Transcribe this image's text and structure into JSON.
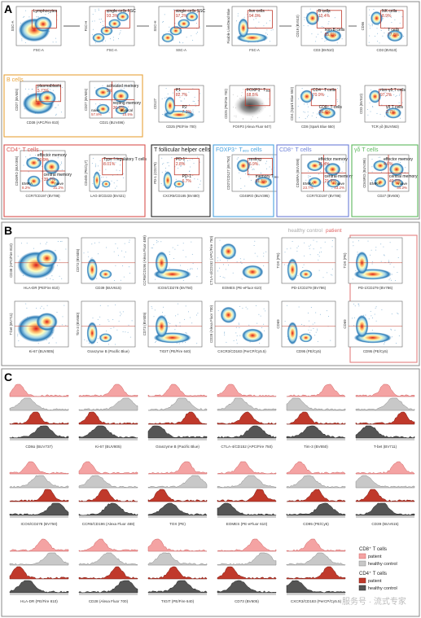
{
  "panels": {
    "A": {
      "letter": "A",
      "plots": [
        {
          "gate": "Lymphocytes",
          "pct": "",
          "ylab": "SSC-A",
          "xlab": "FSC-A",
          "tone": "blob"
        },
        {
          "gate": "single cells FSC",
          "pct": "93.3%",
          "ylab": "FSC-H",
          "xlab": "FSC-A",
          "tone": "diag"
        },
        {
          "gate": "single cells SSC",
          "pct": "97.2%",
          "ylab": "SSC-H",
          "xlab": "SSC-A",
          "tone": "diag"
        },
        {
          "gate": "live cells",
          "pct": "94.0%",
          "ylab": "Fixable Live/Dead Blue",
          "xlab": "FSC-A",
          "tone": "bottom"
        },
        {
          "gate": "B cells",
          "pct": "10.4%",
          "gate2": "non-B cells",
          "pct2": "85.6%",
          "ylab": "CD19 (BV510)",
          "xlab": "CD3 (BV510)",
          "tone": "two"
        },
        {
          "gate": "NK cells",
          "pct": "8.9%",
          "gate2": "T cells",
          "pct2": "77.8%",
          "ylab": "CD56",
          "xlab": "CD3 (BV510)",
          "tone": "two"
        },
        {
          "gate": "plasmablasts",
          "pct": "5.73%",
          "ylab": "CD27 (BV605)",
          "xlab": "CD38 (APC/Fire 810)",
          "tone": "blob"
        },
        {
          "gate": "activated memory",
          "pct": "5%",
          "gate2": "resting memory",
          "pct2": "26.6%",
          "gate3": "naive",
          "pct3": "57.8%",
          "gate4": "atypical",
          "pct4": "10.5%",
          "ylab": "CD27 (BV605)",
          "xlab": "CD21 (BUV496)",
          "tone": "quad"
        },
        {
          "gate": "P1",
          "pct": "82.7%",
          "gate2": "P2",
          "pct2": "7.1%",
          "ylab": "CD127",
          "xlab": "CD25 (PE/Fire 700)",
          "tone": "bottom"
        },
        {
          "gate": "FOXP3⁺ Tₔₑ₉",
          "pct": "68.5%",
          "ylab": "CD25 (PE/Fire 700)",
          "xlab": "FOXP3 (Alexa Fluor 647)",
          "tone": "gray"
        },
        {
          "gate": "CD4⁺ T cells",
          "pct": "70.9%",
          "gate2": "CD8⁺ T cells",
          "pct2": "26.4%",
          "ylab": "CD4 (Spark Blue 550)",
          "xlab": "CD8 (Spark Blue 550)",
          "tone": "two"
        },
        {
          "gate": "non-γδ T cells",
          "pct": "97.2%",
          "gate2": "γδ T cells",
          "pct2": "2.7%",
          "ylab": "CD3 (BV510)",
          "xlab": "TCR γδ (BUV563)",
          "tone": "two"
        },
        {
          "gate": "effector memory",
          "pct": "20.9%",
          "gate2": "central memory",
          "pct2": "39.7%",
          "gate3": "EMRA",
          "pct3": "8.2%",
          "gate4": "naive",
          "pct4": "31.2%",
          "ylab": "CD45RO (BUV395)",
          "xlab": "CCR7/CD197 (BV786)",
          "tone": "quad"
        },
        {
          "gate": "Type I regulatory T cells",
          "pct": "8.01%",
          "ylab": "CD49b (PE/Cy7)",
          "xlab": "LAG-3/CD223 (BV421)",
          "tone": "left"
        },
        {
          "gate": "PD-1⁺",
          "pct": "2.8%",
          "gate2": "PD-1⁻",
          "pct2": "6.7%",
          "ylab": "PD-1 (CD279)",
          "xlab": "CXCR5/CD185 (BV480)",
          "tone": "left"
        },
        {
          "gate": "resting",
          "pct": "6.9%",
          "gate2": "memory Tₔₑ₉",
          "pct2": "91.5%",
          "ylab": "CD27/CD127 (BV750)",
          "xlab": "CD45RO (BUV395)",
          "tone": "two"
        },
        {
          "gate": "effector memory",
          "pct": "11.4%",
          "gate2": "central memory",
          "pct2": "21.9%",
          "gate3": "EMRA",
          "pct3": "23.7%",
          "gate4": "naive",
          "pct4": "43.2%",
          "ylab": "CD45RA (BUV395)",
          "xlab": "CCR7/CD197 (BV786)",
          "tone": "quad"
        },
        {
          "gate": "effector memory",
          "pct": "4.6%",
          "gate2": "central memory",
          "pct2": "40.8%",
          "gate3": "EMRA",
          "pct3": "",
          "gate4": "naive",
          "pct4": "34.2%",
          "ylab": "CD45RO (BUV395)",
          "xlab": "CD27 (BV605)",
          "tone": "quad"
        }
      ],
      "row_titles": [
        {
          "label": "B cells",
          "color": "#e8a33a"
        },
        {
          "label": "CD4⁺ T cells",
          "color": "#d9534f"
        },
        {
          "label": "T follicular helper cells",
          "color": "#222222"
        },
        {
          "label": "FOXP3⁺ Tₔₑ₉ cells",
          "color": "#4aa3df"
        },
        {
          "label": "CD8⁺ T cells",
          "color": "#6b7fd7"
        },
        {
          "label": "γδ T cells",
          "color": "#5cb85c"
        }
      ]
    },
    "B": {
      "letter": "B",
      "legend_control": "healthy control",
      "legend_patient": "patient",
      "plots": [
        {
          "ylab": "CD38 (APC/Fire 810)",
          "xlab": "HLA-DR (PE/Fire 810)"
        },
        {
          "ylab": "CD73 (BV605)",
          "xlab": "CD39 (BUV615)"
        },
        {
          "ylab": "CCR6/CD196 (Alexa Fluor 488)",
          "xlab": "ICOS/CD278 (BV750)"
        },
        {
          "ylab": "CTLA-4/CD152 (APC/Fire 750)",
          "xlab": "EOMES (PE-eFluor 610)"
        },
        {
          "ylab": "TOX (PE)",
          "xlab": "PD-1/CD279 (BV786)"
        },
        {
          "ylab": "TOX (PE)",
          "xlab": "PD-1/CD279 (BV786)"
        },
        {
          "ylab": "T-bet (BV711)",
          "xlab": "Ki-67 (BUV805)"
        },
        {
          "ylab": "Tim-3 (BV650)",
          "xlab": "Granzyme B (Pacific Blue)"
        },
        {
          "ylab": "CD73 (BV605)",
          "xlab": "TIGIT (PE/Fire 640)"
        },
        {
          "ylab": "CD28 (Alexa Fluor 700)",
          "xlab": "CXCR3/CD183 (PerCP/Cy5.5)"
        },
        {
          "ylab": "CD69",
          "xlab": "CD95 (PE/Cy5)"
        },
        {
          "ylab": "CD69",
          "xlab": "CD95 (PE/Cy5)"
        }
      ]
    },
    "C": {
      "letter": "C",
      "rows": [
        [
          "CD8α (BUV737)",
          "Ki-67 (BUV805)",
          "Granzyme B (Pacific Blue)",
          "CTLA-4/CD152 (APC/Fire 750)",
          "Tim-3 (BV650)",
          "T-bet (BV711)"
        ],
        [
          "ICOS/CD278 (BV750)",
          "CCR6/CD196 (Alexa Fluor 488)",
          "TOX (PE)",
          "EOMES (PE-eFluor 610)",
          "CD95 (PE/Cy5)",
          "CD39 (BUV615)"
        ],
        [
          "HLA-DR (PE/Fire 810)",
          "CD28 (Alexa Fluor 700)",
          "TIGIT (PE/Fire 640)",
          "CD73 (BV605)",
          "CXCR3/CD183 (PerCP/Cy5.5)"
        ]
      ],
      "legend": {
        "cd8_title": "CD8⁺ T cells",
        "cd4_title": "CD4⁺ T cells",
        "patient": "patient",
        "control": "healthy control"
      }
    }
  },
  "colors": {
    "panel_border": "#555555",
    "gate": "#c0392b",
    "patient_light": "#f4a3a3",
    "patient_dark": "#c0392b",
    "control_light": "#c8c8c8",
    "control_dark": "#555555",
    "patient_box": "#e58a8a"
  },
  "watermark": "服务号 · 流式专家"
}
